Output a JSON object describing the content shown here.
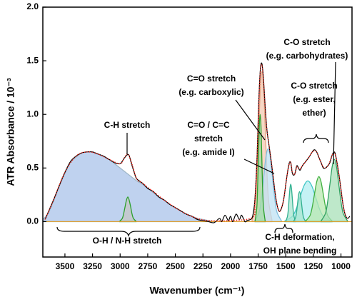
{
  "chart_data": {
    "type": "line",
    "xlabel": "Wavenumber (cm⁻¹)",
    "ylabel": "ATR Absorbance / 10⁻³",
    "xlim": [
      3700,
      900
    ],
    "ylim": [
      -0.33,
      2.0
    ],
    "xticks": [
      3500,
      3250,
      3000,
      2750,
      2500,
      2250,
      2000,
      1750,
      1500,
      1250,
      1000
    ],
    "yticks": [
      {
        "value": 0,
        "label": "0.0"
      },
      0.5,
      {
        "value": 1,
        "label": "1.0"
      },
      1.5,
      {
        "value": 2,
        "label": "2.0"
      }
    ],
    "components": [
      {
        "fill": "#a9c3ea",
        "color": "#9fb7c8",
        "x": [
          3700,
          3650,
          3600,
          3550,
          3500,
          3450,
          3400,
          3350,
          3300,
          3250,
          3200,
          3150,
          3100,
          3050,
          3000,
          2950,
          2900,
          2850,
          2800,
          2750,
          2700,
          2650,
          2600,
          2550,
          2500,
          2450,
          2400,
          2350,
          2300,
          2250,
          2200,
          2150
        ],
        "values": [
          0.02,
          0.08,
          0.2,
          0.33,
          0.45,
          0.55,
          0.6,
          0.64,
          0.65,
          0.65,
          0.63,
          0.61,
          0.58,
          0.54,
          0.5,
          0.46,
          0.42,
          0.38,
          0.35,
          0.31,
          0.27,
          0.23,
          0.2,
          0.16,
          0.13,
          0.1,
          0.07,
          0.05,
          0.03,
          0.02,
          0.01,
          0
        ]
      },
      {
        "fill": "#c6c6c6",
        "color": "#2ca02c",
        "x": [
          3005,
          2980,
          2968,
          2955,
          2943,
          2930,
          2918,
          2905,
          2893,
          2880,
          2855
        ],
        "values": [
          0.003,
          0.031,
          0.075,
          0.14,
          0.2,
          0.23,
          0.2,
          0.14,
          0.075,
          0.031,
          0.003
        ]
      },
      {
        "fill": "#f3c9b2",
        "color": "#e3a282",
        "x": [
          1805,
          1775,
          1760,
          1745,
          1730,
          1715,
          1700,
          1685,
          1670,
          1655,
          1625
        ],
        "values": [
          0.015,
          0.19,
          0.455,
          0.85,
          1.235,
          1.4,
          1.235,
          0.85,
          0.455,
          0.19,
          0.015
        ]
      },
      {
        "fill": "#bfe1f3",
        "color": "#7fbfe0",
        "x": [
          1780,
          1740,
          1720,
          1700,
          1680,
          1660,
          1640,
          1620,
          1600,
          1580,
          1540
        ],
        "values": [
          0.01,
          0.09,
          0.22,
          0.41,
          0.6,
          0.68,
          0.6,
          0.41,
          0.22,
          0.09,
          0.01
        ]
      },
      {
        "fill": "#a2dca4",
        "color": "#2ca02c",
        "x": [
          1777,
          1762,
          1755,
          1747,
          1740,
          1732,
          1724,
          1717,
          1710,
          1702,
          1687
        ],
        "values": [
          0.01,
          0.135,
          0.325,
          0.607,
          0.882,
          1.0,
          0.882,
          0.607,
          0.325,
          0.135,
          0.01
        ]
      },
      {
        "fill": "#b2eef0",
        "color": "#40c6c6",
        "x": [
          1510,
          1440,
          1405,
          1370,
          1335,
          1300,
          1265,
          1230,
          1195,
          1160,
          1090
        ],
        "values": [
          0.004,
          0.05,
          0.12,
          0.23,
          0.335,
          0.38,
          0.335,
          0.23,
          0.12,
          0.05,
          0.004
        ]
      },
      {
        "fill": "#a8e6d0",
        "color": "#30b090",
        "x": [
          1500,
          1485,
          1477,
          1470,
          1462,
          1455,
          1448,
          1440,
          1433,
          1425,
          1410
        ],
        "values": [
          0.004,
          0.047,
          0.11,
          0.21,
          0.31,
          0.35,
          0.31,
          0.21,
          0.11,
          0.047,
          0.004
        ]
      },
      {
        "fill": "#a8e6d0",
        "color": "#30b090",
        "x": [
          1429,
          1411,
          1402,
          1393,
          1384,
          1375,
          1366,
          1357,
          1348,
          1339,
          1321
        ],
        "values": [
          0.003,
          0.038,
          0.09,
          0.17,
          0.247,
          0.28,
          0.247,
          0.17,
          0.09,
          0.038,
          0.003
        ]
      },
      {
        "fill": "#b8e8b0",
        "color": "#40b040",
        "x": [
          1320,
          1280,
          1260,
          1240,
          1220,
          1200,
          1180,
          1160,
          1140,
          1120,
          1080
        ],
        "values": [
          0.005,
          0.057,
          0.137,
          0.255,
          0.37,
          0.42,
          0.37,
          0.255,
          0.137,
          0.057,
          0.005
        ]
      },
      {
        "fill": "#a8e0b8",
        "color": "#30a060",
        "x": [
          1180,
          1140,
          1120,
          1100,
          1080,
          1060,
          1040,
          1020,
          1000,
          980,
          940
        ],
        "values": [
          0.006,
          0.078,
          0.19,
          0.35,
          0.51,
          0.58,
          0.51,
          0.35,
          0.19,
          0.078,
          0.006
        ]
      }
    ],
    "series": [
      {
        "color": "#000000",
        "line_style": "solid",
        "x": [
          3680,
          3650,
          3600,
          3550,
          3500,
          3450,
          3400,
          3350,
          3300,
          3250,
          3200,
          3150,
          3100,
          3050,
          3000,
          2970,
          2940,
          2920,
          2900,
          2870,
          2850,
          2800,
          2750,
          2700,
          2650,
          2600,
          2550,
          2500,
          2450,
          2400,
          2350,
          2300,
          2250,
          2200,
          2150,
          2100,
          2080,
          2050,
          2020,
          2000,
          1980,
          1950,
          1920,
          1900,
          1870,
          1850,
          1820,
          1800,
          1780,
          1760,
          1745,
          1730,
          1715,
          1700,
          1685,
          1670,
          1650,
          1630,
          1610,
          1590,
          1570,
          1550,
          1520,
          1490,
          1470,
          1455,
          1440,
          1420,
          1400,
          1385,
          1370,
          1350,
          1320,
          1290,
          1260,
          1240,
          1220,
          1200,
          1180,
          1160,
          1140,
          1120,
          1100,
          1080,
          1060,
          1045,
          1020,
          1000,
          980,
          960,
          940,
          920
        ],
        "values": [
          0.02,
          0.09,
          0.21,
          0.34,
          0.46,
          0.56,
          0.61,
          0.64,
          0.65,
          0.65,
          0.63,
          0.61,
          0.58,
          0.55,
          0.54,
          0.58,
          0.62,
          0.62,
          0.55,
          0.45,
          0.4,
          0.36,
          0.31,
          0.28,
          0.23,
          0.2,
          0.16,
          0.13,
          0.1,
          0.07,
          0.05,
          0.02,
          0.01,
          0,
          -0.01,
          0.03,
          0,
          0.06,
          0.01,
          0.05,
          0,
          0.07,
          0.02,
          0.06,
          0,
          0.01,
          0.02,
          0.05,
          0.2,
          0.6,
          1.1,
          1.42,
          1.47,
          1.3,
          1.05,
          0.85,
          0.7,
          0.55,
          0.38,
          0.22,
          0.12,
          0.1,
          0.2,
          0.42,
          0.54,
          0.55,
          0.45,
          0.44,
          0.52,
          0.5,
          0.48,
          0.52,
          0.56,
          0.6,
          0.65,
          0.67,
          0.65,
          0.6,
          0.55,
          0.5,
          0.5,
          0.52,
          0.55,
          0.62,
          0.65,
          0.6,
          0.45,
          0.3,
          0.15,
          0.06,
          0.03,
          0.05
        ]
      },
      {
        "color": "#e8281e",
        "line_style": "dotted",
        "x": [
          3680,
          3600,
          3500,
          3400,
          3300,
          3200,
          3100,
          3000,
          2960,
          2930,
          2900,
          2850,
          2800,
          2700,
          2600,
          2500,
          2400,
          2300,
          2200,
          2000,
          1800,
          1780,
          1760,
          1745,
          1730,
          1715,
          1700,
          1685,
          1670,
          1650,
          1630,
          1610,
          1590,
          1570,
          1550,
          1520,
          1490,
          1470,
          1455,
          1440,
          1420,
          1400,
          1385,
          1370,
          1350,
          1320,
          1290,
          1260,
          1240,
          1220,
          1200,
          1180,
          1160,
          1140,
          1120,
          1100,
          1080,
          1060,
          1045,
          1020,
          1000,
          980,
          960,
          940
        ],
        "values": [
          0.02,
          0.21,
          0.46,
          0.61,
          0.65,
          0.63,
          0.58,
          0.54,
          0.6,
          0.63,
          0.56,
          0.4,
          0.36,
          0.28,
          0.2,
          0.13,
          0.07,
          0.03,
          0.01,
          0.01,
          0.04,
          0.18,
          0.58,
          1.08,
          1.4,
          1.46,
          1.3,
          1.05,
          0.85,
          0.7,
          0.55,
          0.38,
          0.22,
          0.12,
          0.1,
          0.2,
          0.42,
          0.53,
          0.55,
          0.46,
          0.44,
          0.51,
          0.5,
          0.49,
          0.52,
          0.56,
          0.6,
          0.65,
          0.66,
          0.65,
          0.6,
          0.55,
          0.51,
          0.5,
          0.52,
          0.56,
          0.62,
          0.64,
          0.6,
          0.45,
          0.3,
          0.15,
          0.06,
          0.03
        ]
      }
    ],
    "annotations": [
      {
        "lines": [
          "C-H stretch"
        ]
      },
      {
        "lines": [
          "O-H / N-H stretch"
        ]
      },
      {
        "lines": [
          "C=O stretch",
          "(e.g. carboxylic)"
        ]
      },
      {
        "lines": [
          "C=O / C=C",
          "stretch",
          "(e.g. amide I)"
        ]
      },
      {
        "lines": [
          "C-O stretch",
          "(e.g. carbohydrates)"
        ]
      },
      {
        "lines": [
          "C-O stretch",
          "(e.g. ester,",
          "ether)"
        ]
      },
      {
        "lines": [
          "C-H deformation,",
          "OH plane bending"
        ]
      }
    ]
  }
}
